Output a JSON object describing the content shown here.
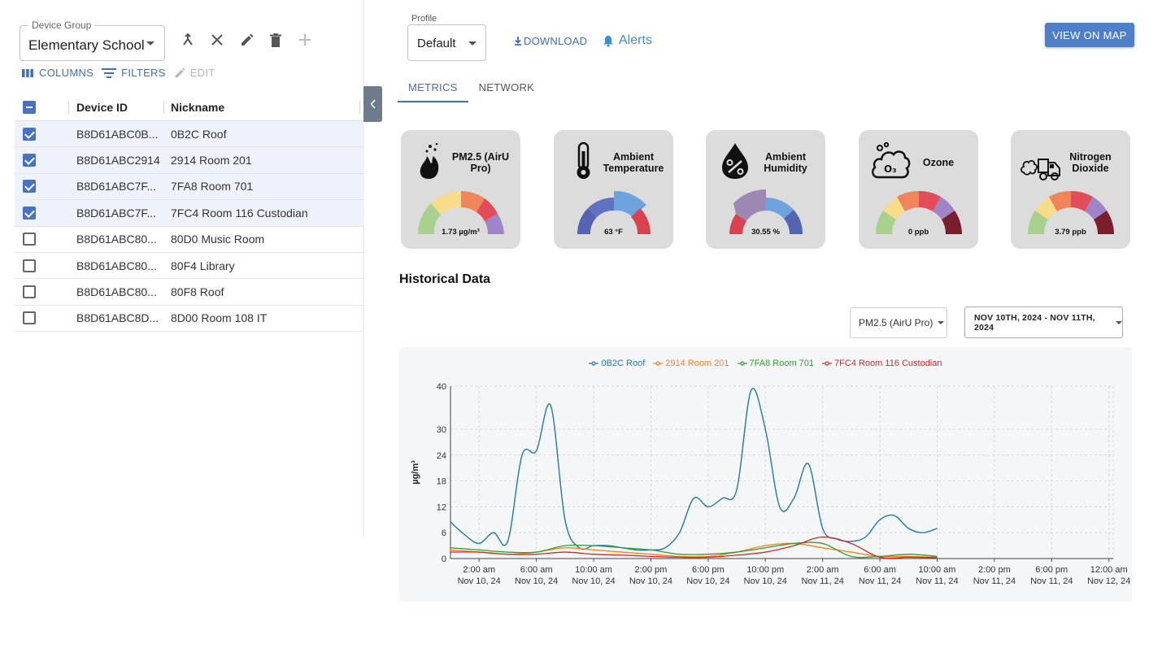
{
  "device_group": {
    "label": "Device Group",
    "value": "Elementary School"
  },
  "grid_toolbar": {
    "columns": "COLUMNS",
    "filters": "FILTERS",
    "edit": "EDIT"
  },
  "grid": {
    "headers": {
      "device_id": "Device ID",
      "nickname": "Nickname"
    },
    "rows": [
      {
        "id": "B8D61ABC0B...",
        "nickname": "0B2C Roof",
        "checked": true
      },
      {
        "id": "B8D61ABC2914",
        "nickname": "2914 Room 201",
        "checked": true
      },
      {
        "id": "B8D61ABC7F...",
        "nickname": "7FA8 Room 701",
        "checked": true
      },
      {
        "id": "B8D61ABC7F...",
        "nickname": "7FC4 Room 116 Custodian",
        "checked": true
      },
      {
        "id": "B8D61ABC80...",
        "nickname": "80D0 Music Room",
        "checked": false
      },
      {
        "id": "B8D61ABC80...",
        "nickname": "80F4 Library",
        "checked": false
      },
      {
        "id": "B8D61ABC80...",
        "nickname": "80F8 Roof",
        "checked": false
      },
      {
        "id": "B8D61ABC8D...",
        "nickname": "8D00 Room 108 IT",
        "checked": false
      }
    ]
  },
  "profile": {
    "label": "Profile",
    "value": "Default"
  },
  "actions": {
    "download": "DOWNLOAD",
    "alerts": "Alerts",
    "view_on_map": "VIEW ON MAP"
  },
  "tabs": {
    "metrics": "METRICS",
    "network": "NETWORK"
  },
  "metrics": [
    {
      "title": "PM2.5 (AirU Pro)",
      "value": "1.73 µg/m³",
      "icon": "fire-icon"
    },
    {
      "title": "Ambient Temperature",
      "value": "63 °F",
      "icon": "thermometer-icon"
    },
    {
      "title": "Ambient Humidity",
      "value": "30.55 %",
      "icon": "humidity-drop-icon"
    },
    {
      "title": "Ozone",
      "value": "0 ppb",
      "icon": "ozone-cloud-icon"
    },
    {
      "title": "Nitrogen Dioxide",
      "value": "3.79 ppb",
      "icon": "truck-exhaust-icon"
    }
  ],
  "historical": {
    "title": "Historical Data",
    "metric_select": "PM2.5 (AirU Pro)",
    "date_range": "NOV 10TH, 2024 - NOV 11TH, 2024"
  },
  "colors": {
    "accent": "#3f6dbf",
    "series": [
      "#1f77b4",
      "#ff7f0e",
      "#2ca02c",
      "#d62728"
    ]
  },
  "chart_data": {
    "type": "line",
    "ylabel": "µg/m³",
    "ylim": [
      0,
      40
    ],
    "yticks": [
      0,
      6,
      12,
      18,
      24,
      30,
      40
    ],
    "xlim_hours": [
      0,
      46.3
    ],
    "xticks": [
      {
        "line1": "2:00 am",
        "line2": "Nov 10, 24"
      },
      {
        "line1": "6:00 am",
        "line2": "Nov 10, 24"
      },
      {
        "line1": "10:00 am",
        "line2": "Nov 10, 24"
      },
      {
        "line1": "2:00 pm",
        "line2": "Nov 10, 24"
      },
      {
        "line1": "6:00 pm",
        "line2": "Nov 10, 24"
      },
      {
        "line1": "10:00 pm",
        "line2": "Nov 10, 24"
      },
      {
        "line1": "2:00 am",
        "line2": "Nov 11, 24"
      },
      {
        "line1": "6:00 am",
        "line2": "Nov 11, 24"
      },
      {
        "line1": "10:00 am",
        "line2": "Nov 11, 24"
      },
      {
        "line1": "2:00 pm",
        "line2": "Nov 11, 24"
      },
      {
        "line1": "6:00 pm",
        "line2": "Nov 11, 24"
      },
      {
        "line1": "12:00 am",
        "line2": "Nov 12, 24"
      }
    ],
    "grid": true,
    "legend": "top-center",
    "series": [
      {
        "name": "0B2C Roof",
        "x": [
          0,
          1,
          2,
          3,
          4,
          5,
          6,
          7,
          8,
          9,
          10,
          11,
          12,
          13,
          14,
          15,
          16,
          17,
          18,
          19,
          20,
          21,
          22,
          23,
          24,
          25,
          26,
          27,
          28,
          29,
          30,
          31,
          32,
          33,
          34
        ],
        "y": [
          8.5,
          5.5,
          3.5,
          6,
          4,
          24,
          25,
          35.5,
          9,
          2.5,
          3,
          3,
          2.5,
          2,
          2,
          2.5,
          6,
          14,
          12,
          14,
          16,
          39,
          30,
          12,
          14,
          22,
          7,
          4.5,
          4,
          5,
          9,
          10,
          7,
          6,
          7
        ]
      },
      {
        "name": "2914 Room 201",
        "x": [
          0,
          2,
          4,
          6,
          8,
          10,
          12,
          14,
          16,
          18,
          20,
          22,
          24,
          26,
          28,
          30,
          32,
          34
        ],
        "y": [
          2,
          1.5,
          1,
          1.5,
          2.5,
          2,
          1.5,
          1,
          0.5,
          0.5,
          1.5,
          3,
          3.5,
          2.5,
          1.5,
          0.5,
          0.5,
          0.3
        ]
      },
      {
        "name": "7FA8 Room 701",
        "x": [
          0,
          2,
          4,
          6,
          8,
          10,
          12,
          14,
          16,
          18,
          20,
          22,
          24,
          26,
          28,
          30,
          32,
          34
        ],
        "y": [
          2.5,
          2,
          1.5,
          1.5,
          3,
          3,
          2.5,
          2,
          1,
          1,
          1.5,
          2.5,
          3.5,
          3.5,
          0.5,
          0.5,
          1,
          0.5
        ]
      },
      {
        "name": "7FC4 Room 116 Custodian",
        "x": [
          0,
          2,
          4,
          6,
          8,
          10,
          12,
          14,
          16,
          18,
          20,
          22,
          24,
          26,
          28,
          30,
          32,
          34
        ],
        "y": [
          1.5,
          1.5,
          1,
          1,
          1.5,
          1,
          0.8,
          0.5,
          0.3,
          0.3,
          0.8,
          1.5,
          3,
          5,
          3.5,
          0.3,
          0.3,
          0.2
        ]
      }
    ]
  }
}
